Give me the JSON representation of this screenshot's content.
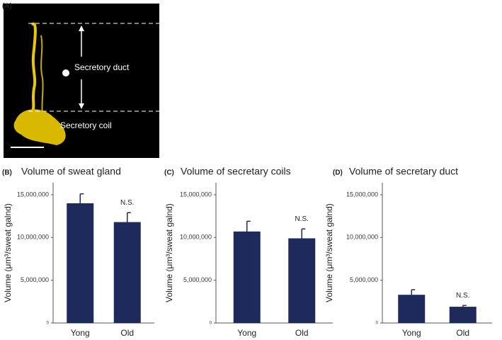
{
  "panel_a": {
    "label": "(A)",
    "annotations": [
      "Secretory duct",
      "Secretory coil"
    ]
  },
  "chart_data": [
    {
      "type": "bar",
      "panel": "(B)",
      "title": "Volume of sweat gland",
      "ylabel": "Volume (μm³/sweat galnd)",
      "categories": [
        "Yong",
        "Old"
      ],
      "values": [
        14000000,
        11800000
      ],
      "errors": [
        1100000,
        1100000
      ],
      "annotation": "N.S.",
      "color": "#1f2a5c",
      "ylim": [
        0,
        16400000
      ],
      "yticks": [
        0,
        {
          "value": 5000000,
          "label": "5,000,000"
        },
        {
          "value": 10000000,
          "label": "10,000,000"
        },
        {
          "value": 15000000,
          "label": "15,000,000"
        }
      ]
    },
    {
      "type": "bar",
      "panel": "(C)",
      "title": "Volume of secretary coils",
      "ylabel": "Volume (μm³/sweat galnd)",
      "categories": [
        "Yong",
        "Old"
      ],
      "values": [
        10700000,
        9900000
      ],
      "errors": [
        1200000,
        1100000
      ],
      "annotation": "N.S.",
      "color": "#1f2a5c",
      "ylim": [
        0,
        16400000
      ],
      "yticks": [
        0,
        {
          "value": 5000000,
          "label": "5,000,000"
        },
        {
          "value": 10000000,
          "label": "10,000,000"
        },
        {
          "value": 15000000,
          "label": "15,000,000"
        }
      ]
    },
    {
      "type": "bar",
      "panel": "(D)",
      "title": "Volume of secretary duct",
      "ylabel": "Volume (μm³/sweat galnd)",
      "categories": [
        "Yong",
        "Old"
      ],
      "values": [
        3300000,
        1900000
      ],
      "errors": [
        600000,
        150000
      ],
      "annotation": "N.S.",
      "color": "#1f2a5c",
      "ylim": [
        0,
        16400000
      ],
      "yticks": [
        0,
        {
          "value": 5000000,
          "label": "5,000,000"
        },
        {
          "value": 10000000,
          "label": "10,000,000"
        },
        {
          "value": 15000000,
          "label": "15,000,000"
        }
      ]
    }
  ]
}
